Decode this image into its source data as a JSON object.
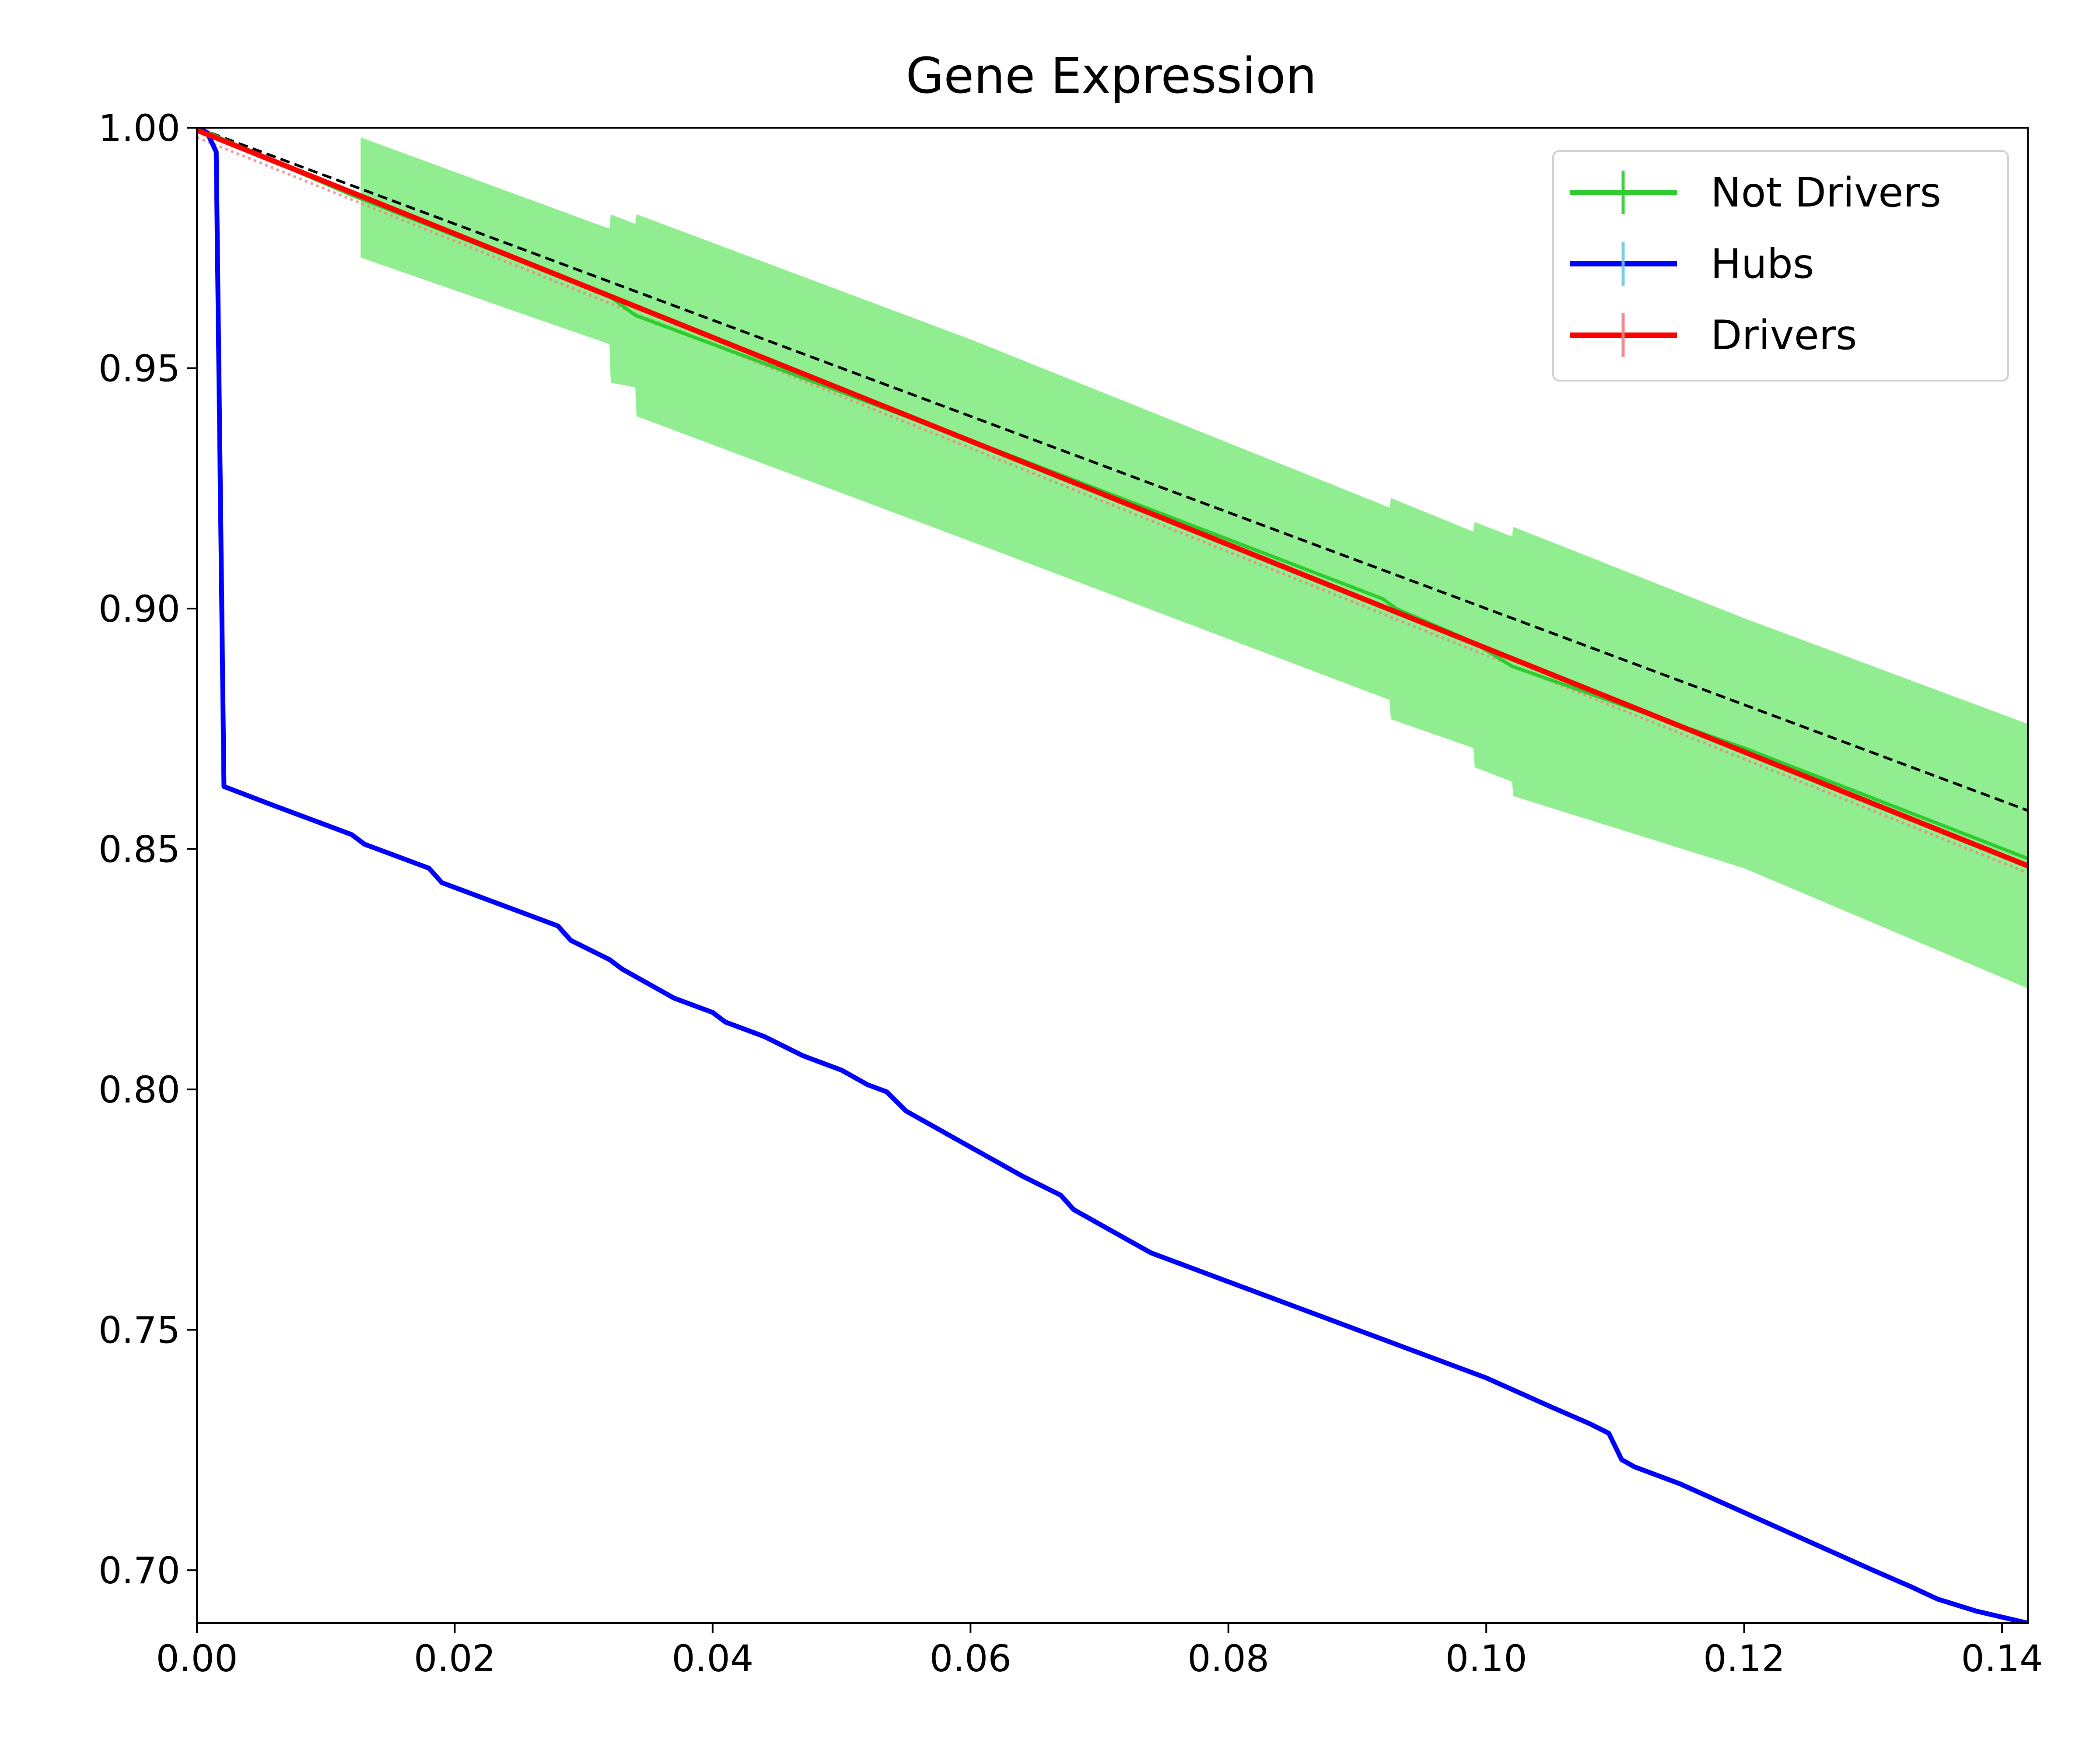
{
  "chart_data": {
    "type": "line",
    "title": "Gene Expression",
    "xlabel": "",
    "ylabel": "",
    "xlim": [
      0,
      0.142
    ],
    "ylim": [
      0.689,
      1.0
    ],
    "x_ticks": [
      0.0,
      0.02,
      0.04,
      0.06,
      0.08,
      0.1,
      0.12,
      0.14
    ],
    "x_tick_labels": [
      "0.00",
      "0.02",
      "0.04",
      "0.06",
      "0.08",
      "0.10",
      "0.12",
      "0.14"
    ],
    "y_ticks": [
      0.7,
      0.75,
      0.8,
      0.85,
      0.9,
      0.95,
      1.0
    ],
    "y_tick_labels": [
      "0.70",
      "0.75",
      "0.80",
      "0.85",
      "0.90",
      "0.95",
      "1.00"
    ],
    "grid": false,
    "legend_position": "top-right",
    "reference_line": {
      "style": "dashed",
      "color": "#000000",
      "x": [
        0.0,
        0.142
      ],
      "y": [
        1.0,
        0.858
      ]
    },
    "series": [
      {
        "name": "Not Drivers",
        "color": "#2ecc2e",
        "x": [
          0.0,
          0.012,
          0.032,
          0.034,
          0.06,
          0.092,
          0.093,
          0.099,
          0.102,
          0.12,
          0.142
        ],
        "y": [
          1.0,
          0.986,
          0.965,
          0.961,
          0.935,
          0.902,
          0.9,
          0.893,
          0.888,
          0.871,
          0.848
        ],
        "band": {
          "color": "#90ee90",
          "x": [
            0.0127,
            0.032,
            0.0321,
            0.034,
            0.0341,
            0.06,
            0.0925,
            0.0926,
            0.099,
            0.0991,
            0.102,
            0.1021,
            0.12,
            0.142
          ],
          "upper": [
            0.998,
            0.979,
            0.982,
            0.98,
            0.982,
            0.956,
            0.921,
            0.923,
            0.916,
            0.918,
            0.915,
            0.917,
            0.898,
            0.876
          ],
          "lower": [
            0.973,
            0.955,
            0.947,
            0.946,
            0.94,
            0.914,
            0.881,
            0.877,
            0.871,
            0.867,
            0.864,
            0.861,
            0.846,
            0.821
          ]
        }
      },
      {
        "name": "Hubs",
        "color": "#0000ff",
        "errorbar_color": "#6ec6e8",
        "x": [
          0.0,
          0.0008,
          0.0015,
          0.0021,
          0.006,
          0.012,
          0.013,
          0.018,
          0.019,
          0.026,
          0.027,
          0.028,
          0.029,
          0.032,
          0.033,
          0.037,
          0.04,
          0.041,
          0.044,
          0.047,
          0.05,
          0.052,
          0.0535,
          0.055,
          0.056,
          0.058,
          0.06,
          0.062,
          0.064,
          0.067,
          0.068,
          0.07,
          0.072,
          0.074,
          0.076,
          0.08,
          0.085,
          0.09,
          0.093,
          0.095,
          0.1,
          0.105,
          0.108,
          0.1095,
          0.1105,
          0.1115,
          0.115,
          0.12,
          0.125,
          0.13,
          0.133,
          0.135,
          0.138,
          0.142
        ],
        "y": [
          1.0,
          0.999,
          0.995,
          0.863,
          0.859,
          0.853,
          0.851,
          0.846,
          0.843,
          0.836,
          0.835,
          0.834,
          0.831,
          0.827,
          0.825,
          0.819,
          0.816,
          0.814,
          0.811,
          0.807,
          0.804,
          0.801,
          0.7995,
          0.7955,
          0.794,
          0.791,
          0.788,
          0.785,
          0.782,
          0.778,
          0.775,
          0.772,
          0.769,
          0.766,
          0.764,
          0.76,
          0.755,
          0.75,
          0.747,
          0.745,
          0.74,
          0.734,
          0.7305,
          0.7285,
          0.723,
          0.7215,
          0.718,
          0.712,
          0.706,
          0.7,
          0.6965,
          0.694,
          0.6915,
          0.689
        ]
      },
      {
        "name": "Drivers",
        "color": "#ff0000",
        "errorbar_color": "#f08080",
        "x": [
          0.0,
          0.142
        ],
        "y": [
          0.9995,
          0.8465
        ]
      }
    ]
  }
}
